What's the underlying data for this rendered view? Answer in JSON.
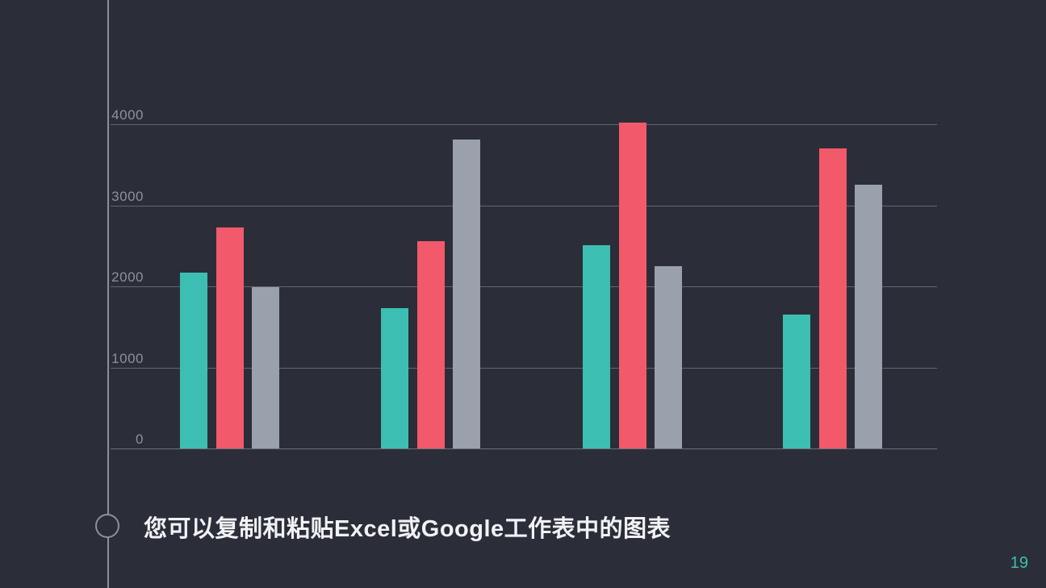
{
  "slide": {
    "background_color": "#2b2e38",
    "caption": "您可以复制和粘贴Excel或Google工作表中的图表",
    "page_number": "19"
  },
  "colors": {
    "accent_line": "#9aa2ae",
    "gridline": "#61666f",
    "axis_label": "#8b919c",
    "caption_text": "#f1f2f5",
    "page_number": "#3cbfb2"
  },
  "chart_data": {
    "type": "bar",
    "title": "",
    "xlabel": "",
    "ylabel": "",
    "categories": [
      "",
      "",
      "",
      ""
    ],
    "series": [
      {
        "name": "series-teal",
        "color": "#3cbfb2",
        "values": [
          2170,
          1730,
          2510,
          1650
        ]
      },
      {
        "name": "series-red",
        "color": "#f2596a",
        "values": [
          2730,
          2560,
          4020,
          3710
        ]
      },
      {
        "name": "series-gray",
        "color": "#9aa0ac",
        "values": [
          1990,
          3810,
          2250,
          3260
        ]
      }
    ],
    "yticks": [
      0,
      1000,
      2000,
      3000,
      4000
    ],
    "ylim": [
      0,
      4300
    ],
    "grid": true,
    "legend": false,
    "x_axis_labels_visible": false
  }
}
